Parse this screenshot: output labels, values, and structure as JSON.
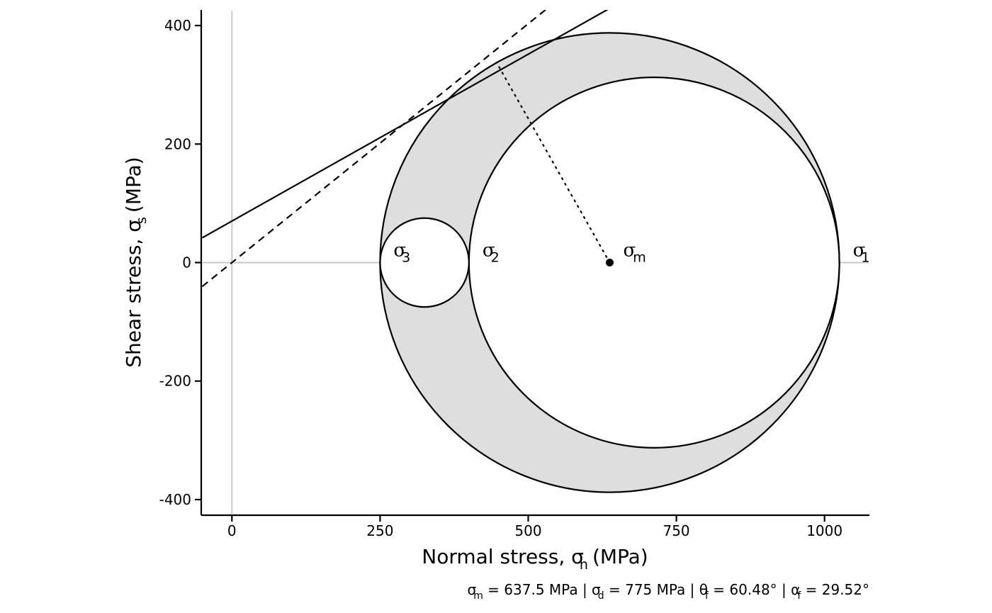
{
  "chart_data": {
    "type": "mohr-circle",
    "xlabel": "Normal stress, σ",
    "xlabel_sub": "n",
    "xlabel_unit": "(MPa)",
    "ylabel": "Shear stress, σ",
    "ylabel_sub": "s",
    "ylabel_unit": "(MPa)",
    "xlim": [
      -50,
      1075
    ],
    "ylim": [
      -425,
      425
    ],
    "xticks": [
      0,
      250,
      500,
      750,
      1000
    ],
    "yticks": [
      -400,
      -200,
      0,
      200,
      400
    ],
    "sigma1": 1025,
    "sigma2": 400,
    "sigma3": 250,
    "sigma_m": 637.5,
    "sigma_d": 775,
    "circles": [
      {
        "name": "sigma1-sigma3",
        "center": 637.5,
        "radius": 387.5,
        "fill": "#dedede"
      },
      {
        "name": "sigma1-sigma2",
        "center": 712.5,
        "radius": 312.5,
        "fill": "#ffffff"
      },
      {
        "name": "sigma2-sigma3",
        "center": 325,
        "radius": 75,
        "fill": "#ffffff"
      }
    ],
    "failure_envelope_solid": {
      "intercept": 70,
      "slope": 0.5632
    },
    "failure_envelope_dashed": {
      "intercept": 0,
      "slope": 0.8061
    },
    "radius_line": {
      "from": [
        637.5,
        0
      ],
      "to": [
        446.7,
        337.3
      ]
    },
    "labels": [
      {
        "symbol": "σ",
        "sub": "3",
        "x": 250
      },
      {
        "symbol": "σ",
        "sub": "2",
        "x": 400
      },
      {
        "symbol": "σ",
        "sub": "m",
        "x": 637.5
      },
      {
        "symbol": "σ",
        "sub": "1",
        "x": 1025
      }
    ],
    "caption": {
      "sigma_m_sym": "σ",
      "sigma_m_sub": "m",
      "sigma_m_text": " = 637.5 MPa | ",
      "sigma_d_sym": "σ",
      "sigma_d_sub": "d",
      "sigma_d_text": " = 775 MPa | ",
      "theta_sym": "θ",
      "theta_sub": "f",
      "theta_text": " = 60.48° | ",
      "alpha_sym": "α",
      "alpha_sub": "f",
      "alpha_text": " = 29.52°"
    },
    "colors": {
      "ink": "#000000",
      "grid": "#c8c8c8",
      "annulus": "#dedede"
    }
  }
}
